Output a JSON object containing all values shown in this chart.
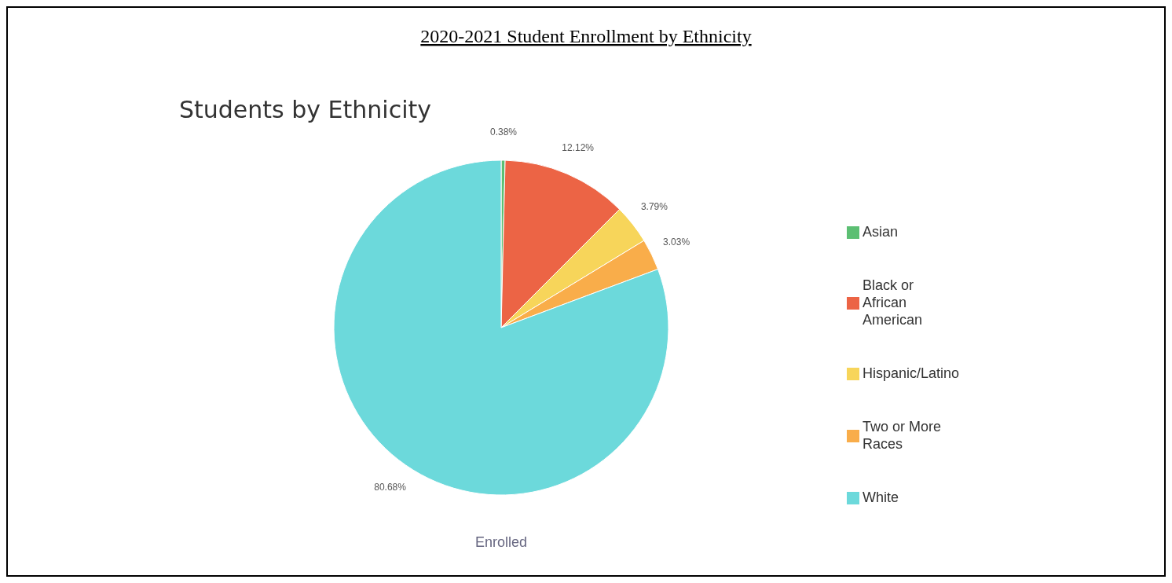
{
  "chart_data": {
    "type": "pie",
    "title": "2020-2021 Student Enrollment by Ethnicity",
    "subtitle": "Students by Ethnicity",
    "xlabel": "Enrolled",
    "categories": [
      "Asian",
      "Black or African American",
      "Hispanic/Latino",
      "Two or More Races",
      "White"
    ],
    "values": [
      0.38,
      12.12,
      3.79,
      3.03,
      80.68
    ],
    "colors": [
      "#5cbf73",
      "#ec6445",
      "#f7d55a",
      "#f9ad4a",
      "#6cd9db"
    ],
    "value_labels": [
      "0.38%",
      "12.12%",
      "3.79%",
      "3.03%",
      "80.68%"
    ],
    "legend": "right"
  }
}
